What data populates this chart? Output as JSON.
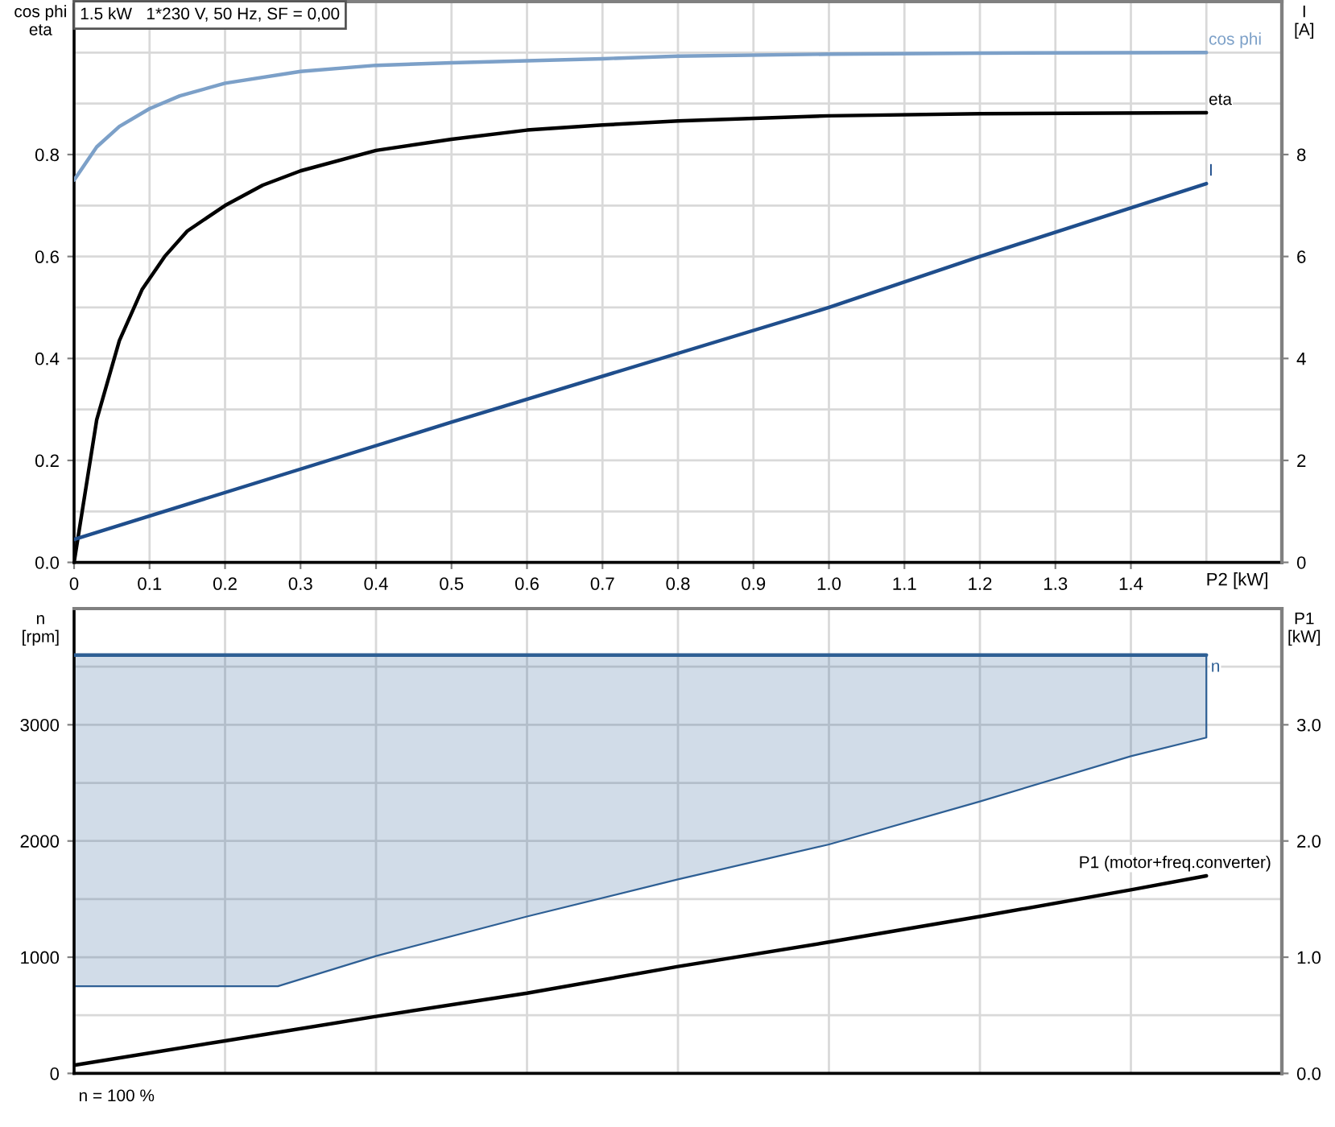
{
  "chart_data": [
    {
      "type": "line",
      "title": "1.5 kW   1*230 V, 50 Hz, SF = 0,00",
      "xlabel": "P2 [kW]",
      "ylabel": "cos phi\neta",
      "y2label": "I\n[A]",
      "xlim": [
        0,
        1.6
      ],
      "xticks": [
        0,
        0.1,
        0.2,
        0.3,
        0.4,
        0.5,
        0.6,
        0.7,
        0.8,
        0.9,
        {
          "value": 1,
          "label": "1.0"
        },
        1.1,
        1.2,
        1.3,
        1.4,
        {
          "value": 1.5,
          "label": null
        }
      ],
      "ylim": [
        0,
        1.1
      ],
      "yticks": [
        {
          "value": 0,
          "label": "0.0"
        },
        {
          "value": 0.1,
          "label": null
        },
        0.2,
        {
          "value": 0.3,
          "label": null
        },
        0.4,
        {
          "value": 0.5,
          "label": null
        },
        0.6,
        {
          "value": 0.7,
          "label": null
        },
        0.8,
        {
          "value": 0.9,
          "label": null
        },
        {
          "value": 1,
          "label": null
        }
      ],
      "y2lim": [
        0,
        11
      ],
      "y2ticks": [
        0,
        2,
        4,
        6,
        8
      ],
      "grid": true,
      "series": [
        {
          "name": "cos phi",
          "color": "#7ca0c8",
          "x": [
            0,
            0.03,
            0.06,
            0.1,
            0.14,
            0.2,
            0.3,
            0.4,
            0.5,
            0.7,
            0.8,
            1,
            1.2,
            1.5
          ],
          "values": [
            0.75,
            0.815,
            0.855,
            0.89,
            0.915,
            0.94,
            0.963,
            0.975,
            0.98,
            0.988,
            0.993,
            0.997,
            0.999,
            1
          ]
        },
        {
          "name": "eta",
          "color": "#000000",
          "x": [
            0,
            0.03,
            0.06,
            0.09,
            0.12,
            0.15,
            0.2,
            0.25,
            0.3,
            0.4,
            0.5,
            0.6,
            0.7,
            0.8,
            1,
            1.2,
            1.5
          ],
          "values": [
            0,
            0.28,
            0.435,
            0.535,
            0.6,
            0.65,
            0.7,
            0.74,
            0.768,
            0.808,
            0.83,
            0.848,
            0.858,
            0.866,
            0.876,
            0.88,
            0.882
          ]
        },
        {
          "name": "I",
          "color": "#1f4e8c",
          "axis": "y2",
          "x": [
            0,
            0.5,
            1,
            1.2,
            1.5
          ],
          "values": [
            0.45,
            2.75,
            5,
            6,
            7.43
          ]
        }
      ]
    },
    {
      "type": "line",
      "ylabel": "n\n[rpm]",
      "y2label": "P1\n[kW]",
      "annotations": [
        "n = 100 %"
      ],
      "tick_labels": "y",
      "xlim": [
        0,
        1.6
      ],
      "xticks": [
        0,
        0.2,
        0.4,
        0.6,
        0.8,
        1,
        1.2,
        1.4
      ],
      "ylim": [
        0,
        4000
      ],
      "yticks": [
        0,
        {
          "value": 500,
          "label": null
        },
        1000,
        {
          "value": 1500,
          "label": null
        },
        2000,
        {
          "value": 2500,
          "label": null
        },
        3000,
        {
          "value": 3500,
          "label": null
        }
      ],
      "y2lim": [
        0,
        4
      ],
      "y2ticks": [
        {
          "value": 0,
          "label": "0.0"
        },
        {
          "value": 1,
          "label": "1.0"
        },
        {
          "value": 2,
          "label": "2.0"
        },
        {
          "value": 3,
          "label": "3.0"
        }
      ],
      "grid": true,
      "series": [
        {
          "name": "n",
          "color": "#2e5f94",
          "x": [
            0,
            0.27,
            0.4,
            0.6,
            0.8,
            1,
            1.2,
            1.4,
            1.5
          ],
          "values": [
            3600,
            3600,
            3600,
            3600,
            3600,
            3600,
            3600,
            3600,
            3600
          ],
          "lower": [
            750,
            750,
            1010,
            1350,
            1670,
            1970,
            2340,
            2730,
            2890
          ],
          "upper": [
            3600,
            3600,
            3600,
            3600,
            3600,
            3600,
            3600,
            3600,
            3600
          ]
        },
        {
          "name": "P1 (motor+freq.converter)",
          "color": "#000000",
          "axis": "y2",
          "x": [
            0,
            0.2,
            0.4,
            0.6,
            0.8,
            1,
            1.2,
            1.4,
            1.5
          ],
          "values": [
            0.07,
            0.28,
            0.49,
            0.69,
            0.92,
            1.13,
            1.35,
            1.58,
            1.7
          ]
        }
      ]
    }
  ]
}
